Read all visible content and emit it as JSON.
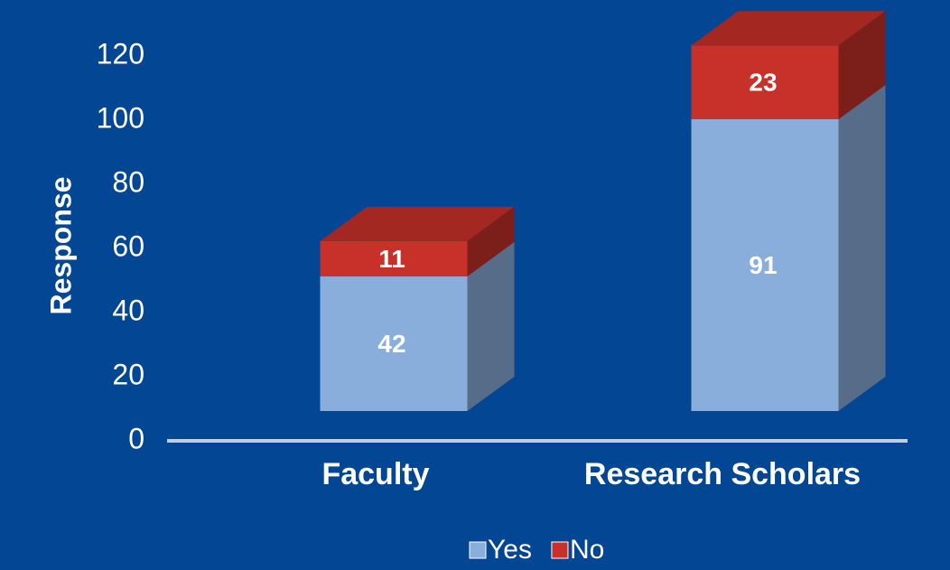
{
  "chart_data": {
    "type": "bar",
    "stacked": true,
    "y_label": "Response",
    "categories": [
      "Faculty",
      "Research Scholars"
    ],
    "series": [
      {
        "name": "Yes",
        "color": "#8aaedc",
        "values": [
          42,
          91
        ]
      },
      {
        "name": "No",
        "color": "#c8302a",
        "values": [
          11,
          23
        ]
      }
    ],
    "ylim": [
      0,
      120
    ],
    "yticks": [
      0,
      20,
      40,
      60,
      80,
      100,
      120
    ],
    "grid": false,
    "legend": "bottom"
  }
}
